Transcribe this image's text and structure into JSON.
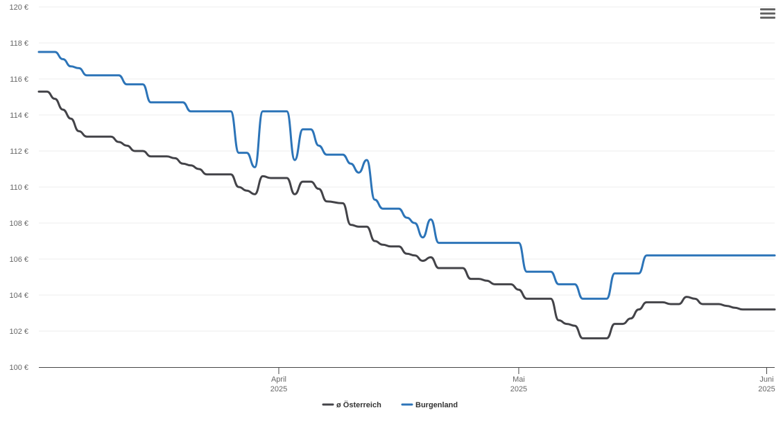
{
  "menu": {
    "icon": "hamburger-menu-icon"
  },
  "chart_data": {
    "type": "line",
    "title": "",
    "xlabel": "",
    "ylabel": "",
    "ylim": [
      100,
      120
    ],
    "y_ticks": [
      100,
      102,
      104,
      106,
      108,
      110,
      112,
      114,
      116,
      118,
      120
    ],
    "y_tick_labels": [
      "100 €",
      "102 €",
      "104 €",
      "106 €",
      "108 €",
      "110 €",
      "112 €",
      "114 €",
      "116 €",
      "118 €",
      "120 €"
    ],
    "xlim": [
      "2025-03-02",
      "2025-06-02"
    ],
    "x_ticks": [
      {
        "date": "2025-04-01",
        "month": "April",
        "year": "2025"
      },
      {
        "date": "2025-05-01",
        "month": "Mai",
        "year": "2025"
      },
      {
        "date": "2025-06-01",
        "month": "Juni",
        "year": "2025"
      }
    ],
    "grid": true,
    "legend_position": "bottom",
    "series": [
      {
        "name": "ø Österreich",
        "color": "#434348",
        "points": [
          [
            "2025-03-02",
            115.3
          ],
          [
            "2025-03-03",
            115.3
          ],
          [
            "2025-03-04",
            114.9
          ],
          [
            "2025-03-05",
            114.3
          ],
          [
            "2025-03-06",
            113.8
          ],
          [
            "2025-03-07",
            113.1
          ],
          [
            "2025-03-08",
            112.8
          ],
          [
            "2025-03-10",
            112.8
          ],
          [
            "2025-03-11",
            112.8
          ],
          [
            "2025-03-12",
            112.5
          ],
          [
            "2025-03-13",
            112.3
          ],
          [
            "2025-03-14",
            112.0
          ],
          [
            "2025-03-15",
            112.0
          ],
          [
            "2025-03-16",
            111.7
          ],
          [
            "2025-03-18",
            111.7
          ],
          [
            "2025-03-19",
            111.6
          ],
          [
            "2025-03-20",
            111.3
          ],
          [
            "2025-03-21",
            111.2
          ],
          [
            "2025-03-22",
            111.0
          ],
          [
            "2025-03-23",
            110.7
          ],
          [
            "2025-03-26",
            110.7
          ],
          [
            "2025-03-27",
            110.0
          ],
          [
            "2025-03-28",
            109.8
          ],
          [
            "2025-03-29",
            109.6
          ],
          [
            "2025-03-30",
            110.6
          ],
          [
            "2025-03-31",
            110.5
          ],
          [
            "2025-04-02",
            110.5
          ],
          [
            "2025-04-03",
            109.6
          ],
          [
            "2025-04-04",
            110.3
          ],
          [
            "2025-04-05",
            110.3
          ],
          [
            "2025-04-06",
            109.9
          ],
          [
            "2025-04-07",
            109.2
          ],
          [
            "2025-04-09",
            109.1
          ],
          [
            "2025-04-10",
            107.9
          ],
          [
            "2025-04-11",
            107.8
          ],
          [
            "2025-04-12",
            107.8
          ],
          [
            "2025-04-13",
            107.0
          ],
          [
            "2025-04-14",
            106.8
          ],
          [
            "2025-04-15",
            106.7
          ],
          [
            "2025-04-16",
            106.7
          ],
          [
            "2025-04-17",
            106.3
          ],
          [
            "2025-04-18",
            106.2
          ],
          [
            "2025-04-19",
            105.9
          ],
          [
            "2025-04-20",
            106.1
          ],
          [
            "2025-04-21",
            105.5
          ],
          [
            "2025-04-24",
            105.5
          ],
          [
            "2025-04-25",
            104.9
          ],
          [
            "2025-04-26",
            104.9
          ],
          [
            "2025-04-27",
            104.8
          ],
          [
            "2025-04-28",
            104.6
          ],
          [
            "2025-04-30",
            104.6
          ],
          [
            "2025-05-01",
            104.3
          ],
          [
            "2025-05-02",
            103.8
          ],
          [
            "2025-05-03",
            103.8
          ],
          [
            "2025-05-05",
            103.8
          ],
          [
            "2025-05-06",
            102.6
          ],
          [
            "2025-05-07",
            102.4
          ],
          [
            "2025-05-08",
            102.3
          ],
          [
            "2025-05-09",
            101.6
          ],
          [
            "2025-05-11",
            101.6
          ],
          [
            "2025-05-12",
            101.6
          ],
          [
            "2025-05-13",
            102.4
          ],
          [
            "2025-05-14",
            102.4
          ],
          [
            "2025-05-15",
            102.7
          ],
          [
            "2025-05-16",
            103.2
          ],
          [
            "2025-05-17",
            103.6
          ],
          [
            "2025-05-19",
            103.6
          ],
          [
            "2025-05-20",
            103.5
          ],
          [
            "2025-05-21",
            103.5
          ],
          [
            "2025-05-22",
            103.9
          ],
          [
            "2025-05-23",
            103.8
          ],
          [
            "2025-05-24",
            103.5
          ],
          [
            "2025-05-26",
            103.5
          ],
          [
            "2025-05-27",
            103.4
          ],
          [
            "2025-05-28",
            103.3
          ],
          [
            "2025-05-29",
            103.2
          ],
          [
            "2025-06-02",
            103.2
          ]
        ]
      },
      {
        "name": "Burgenland",
        "color": "#2c74b8",
        "points": [
          [
            "2025-03-02",
            117.5
          ],
          [
            "2025-03-04",
            117.5
          ],
          [
            "2025-03-05",
            117.1
          ],
          [
            "2025-03-06",
            116.7
          ],
          [
            "2025-03-07",
            116.6
          ],
          [
            "2025-03-08",
            116.2
          ],
          [
            "2025-03-11",
            116.2
          ],
          [
            "2025-03-12",
            116.2
          ],
          [
            "2025-03-13",
            115.7
          ],
          [
            "2025-03-15",
            115.7
          ],
          [
            "2025-03-16",
            114.7
          ],
          [
            "2025-03-19",
            114.7
          ],
          [
            "2025-03-20",
            114.7
          ],
          [
            "2025-03-21",
            114.2
          ],
          [
            "2025-03-26",
            114.2
          ],
          [
            "2025-03-27",
            111.9
          ],
          [
            "2025-03-28",
            111.9
          ],
          [
            "2025-03-29",
            111.1
          ],
          [
            "2025-03-30",
            114.2
          ],
          [
            "2025-04-01",
            114.2
          ],
          [
            "2025-04-02",
            114.2
          ],
          [
            "2025-04-03",
            111.5
          ],
          [
            "2025-04-04",
            113.2
          ],
          [
            "2025-04-05",
            113.2
          ],
          [
            "2025-04-06",
            112.3
          ],
          [
            "2025-04-07",
            111.8
          ],
          [
            "2025-04-09",
            111.8
          ],
          [
            "2025-04-10",
            111.3
          ],
          [
            "2025-04-11",
            110.8
          ],
          [
            "2025-04-12",
            111.5
          ],
          [
            "2025-04-13",
            109.3
          ],
          [
            "2025-04-14",
            108.8
          ],
          [
            "2025-04-16",
            108.8
          ],
          [
            "2025-04-17",
            108.3
          ],
          [
            "2025-04-18",
            108.0
          ],
          [
            "2025-04-19",
            107.2
          ],
          [
            "2025-04-20",
            108.2
          ],
          [
            "2025-04-21",
            106.9
          ],
          [
            "2025-04-30",
            106.9
          ],
          [
            "2025-05-01",
            106.9
          ],
          [
            "2025-05-02",
            105.3
          ],
          [
            "2025-05-05",
            105.3
          ],
          [
            "2025-05-06",
            104.6
          ],
          [
            "2025-05-08",
            104.6
          ],
          [
            "2025-05-09",
            103.8
          ],
          [
            "2025-05-12",
            103.8
          ],
          [
            "2025-05-13",
            105.2
          ],
          [
            "2025-05-15",
            105.2
          ],
          [
            "2025-05-16",
            105.2
          ],
          [
            "2025-05-17",
            106.2
          ],
          [
            "2025-06-02",
            106.2
          ]
        ]
      }
    ]
  }
}
